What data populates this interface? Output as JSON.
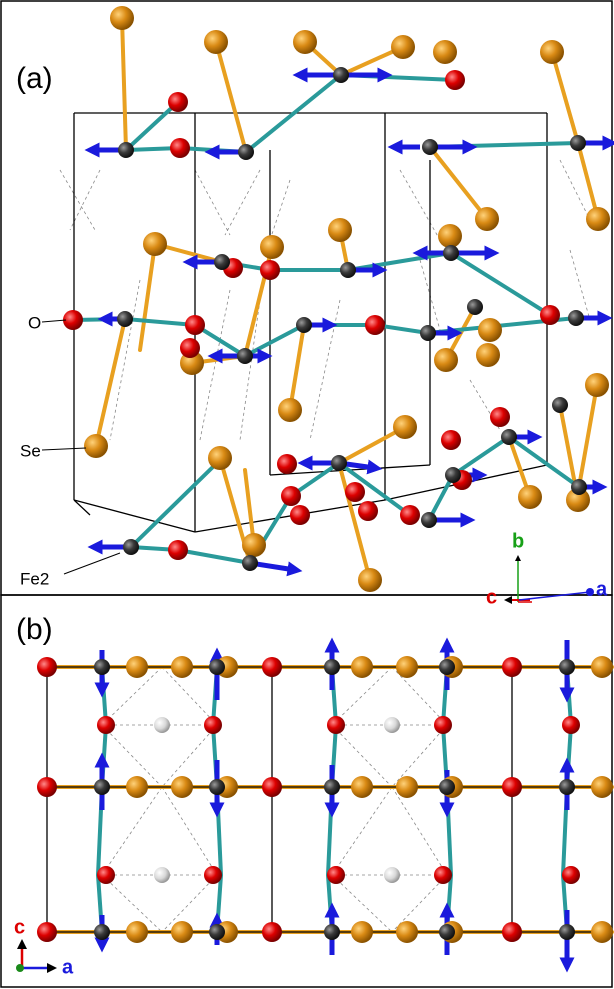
{
  "panel_a": {
    "label": "(a)",
    "atom_labels": [
      "O",
      "Se",
      "Fe2"
    ],
    "axis_labels": [
      "b",
      "c",
      "a"
    ]
  },
  "panel_b": {
    "label": "(b)",
    "axis_labels": [
      "c",
      "a"
    ]
  }
}
